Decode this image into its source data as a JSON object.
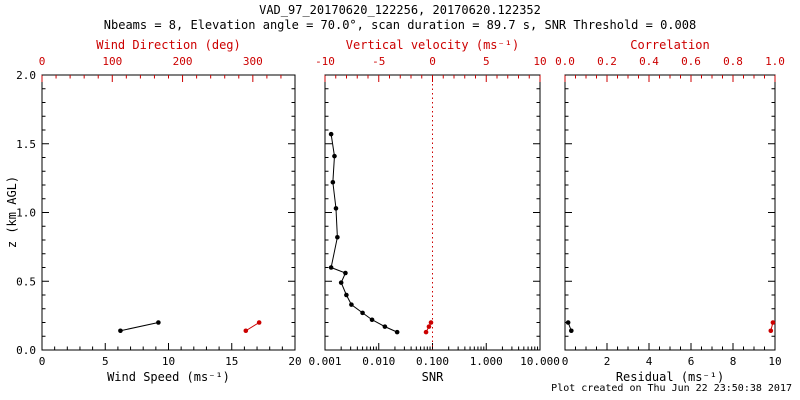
{
  "title": "VAD_97_20170620_122256, 20170620.122352",
  "subtitle": "Nbeams = 8, Elevation angle = 70.0°, scan duration = 89.7 s, SNR Threshold = 0.008",
  "footer": "Plot created on Thu Jun 22 23:50:38 2017",
  "ylabel": "z (km AGL)",
  "colors": {
    "black": "#000000",
    "red": "#cc0000"
  },
  "chart_data": [
    {
      "type": "scatter",
      "name": "wind",
      "xlabel_bottom": "Wind Speed (ms⁻¹)",
      "xlabel_top": "Wind Direction (deg)",
      "x_bottom": {
        "min": 0,
        "max": 20,
        "tick_values": [
          0,
          5,
          10,
          15,
          20
        ],
        "ticks": [
          "0",
          "5",
          "10",
          "15",
          "20"
        ],
        "minors": 5
      },
      "x_top": {
        "min": 0,
        "max": 360,
        "tick_values": [
          0,
          100,
          200,
          300
        ],
        "ticks": [
          "0",
          "100",
          "200",
          "300"
        ],
        "minors": 5
      },
      "y": {
        "min": 0,
        "max": 2,
        "tick_values": [
          0,
          0.5,
          1,
          1.5,
          2
        ],
        "ticks": [
          "0.0",
          "0.5",
          "1.0",
          "1.5",
          "2.0"
        ],
        "minors": 5
      },
      "series": [
        {
          "name": "wind-speed",
          "axis": "bottom",
          "color": "black",
          "line": true,
          "points": [
            [
              6.2,
              0.14
            ],
            [
              9.2,
              0.2
            ]
          ]
        },
        {
          "name": "wind-direction",
          "axis": "top",
          "color": "red",
          "line": true,
          "points": [
            [
              290,
              0.14
            ],
            [
              309,
              0.2
            ]
          ]
        }
      ]
    },
    {
      "type": "scatter",
      "name": "snr",
      "xlabel_bottom": "SNR",
      "xlabel_top": "Vertical velocity (ms⁻¹)",
      "x_bottom": {
        "min": 0.001,
        "max": 10,
        "log": true,
        "tick_values": [
          0.001,
          0.01,
          0.1,
          1,
          10
        ],
        "ticks": [
          "0.001",
          "0.010",
          "0.100",
          "1.000",
          "10.000"
        ]
      },
      "x_top": {
        "min": -10,
        "max": 10,
        "tick_values": [
          -10,
          -5,
          0,
          5,
          10
        ],
        "ticks": [
          "-10",
          "-5",
          "0",
          "5",
          "10"
        ],
        "minors": 5
      },
      "y": {
        "min": 0,
        "max": 2,
        "tick_values": [
          0,
          0.5,
          1,
          1.5,
          2
        ],
        "ticks": [
          "0.0",
          "0.5",
          "1.0",
          "1.5",
          "2.0"
        ],
        "minors": 5
      },
      "refline_top": 0,
      "series": [
        {
          "name": "snr-profile",
          "axis": "bottom",
          "color": "black",
          "line": true,
          "points": [
            [
              0.0013,
              1.57
            ],
            [
              0.0015,
              1.41
            ],
            [
              0.0014,
              1.22
            ],
            [
              0.0016,
              1.03
            ],
            [
              0.0017,
              0.82
            ],
            [
              0.0013,
              0.6
            ],
            [
              0.0024,
              0.56
            ],
            [
              0.002,
              0.49
            ],
            [
              0.0025,
              0.4
            ],
            [
              0.0031,
              0.33
            ],
            [
              0.005,
              0.27
            ],
            [
              0.0075,
              0.22
            ],
            [
              0.013,
              0.17
            ],
            [
              0.022,
              0.13
            ]
          ]
        },
        {
          "name": "vertical-velocity",
          "axis": "top",
          "color": "red",
          "line": true,
          "points": [
            [
              -0.6,
              0.13
            ],
            [
              -0.33,
              0.17
            ],
            [
              -0.14,
              0.2
            ]
          ]
        }
      ]
    },
    {
      "type": "scatter",
      "name": "residual",
      "xlabel_bottom": "Residual (ms⁻¹)",
      "xlabel_top": "Correlation",
      "x_bottom": {
        "min": 0,
        "max": 10,
        "tick_values": [
          0,
          2,
          4,
          6,
          8,
          10
        ],
        "ticks": [
          "0",
          "2",
          "4",
          "6",
          "8",
          "10"
        ],
        "minors": 4
      },
      "x_top": {
        "min": 0,
        "max": 1,
        "tick_values": [
          0,
          0.2,
          0.4,
          0.6,
          0.8,
          1.0
        ],
        "ticks": [
          "0.0",
          "0.2",
          "0.4",
          "0.6",
          "0.8",
          "1.0"
        ],
        "minors": 4
      },
      "y": {
        "min": 0,
        "max": 2,
        "tick_values": [
          0,
          0.5,
          1,
          1.5,
          2
        ],
        "ticks": [
          "0.0",
          "0.5",
          "1.0",
          "1.5",
          "2.0"
        ],
        "minors": 5
      },
      "series": [
        {
          "name": "residual",
          "axis": "bottom",
          "color": "black",
          "line": true,
          "points": [
            [
              0.3,
              0.14
            ],
            [
              0.15,
              0.2
            ]
          ]
        },
        {
          "name": "correlation",
          "axis": "top",
          "color": "red",
          "line": true,
          "points": [
            [
              0.98,
              0.14
            ],
            [
              0.99,
              0.2
            ]
          ]
        }
      ]
    }
  ]
}
